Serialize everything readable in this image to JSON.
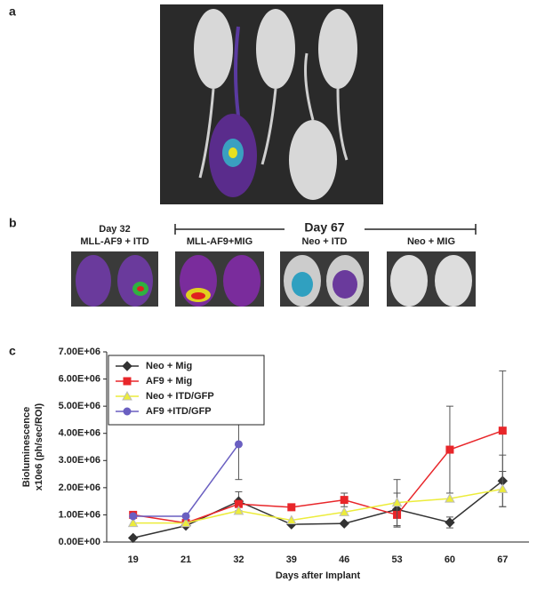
{
  "panels": {
    "a": {
      "label": "a"
    },
    "b": {
      "label": "b",
      "day32": "Day 32",
      "group32": "MLL-AF9 + ITD",
      "day67": "Day 67",
      "groups": [
        "MLL-AF9+MIG",
        "Neo + ITD",
        "Neo + MIG"
      ]
    },
    "c": {
      "label": "c"
    }
  },
  "chart_data": {
    "type": "line",
    "ylabel": [
      "Bioluminescence",
      "x10e6 (ph/sec/ROI)"
    ],
    "xlabel": "Days after Implant",
    "categories": [
      "19",
      "21",
      "32",
      "39",
      "46",
      "53",
      "60",
      "67"
    ],
    "ylim": [
      0,
      7000000
    ],
    "yticks": [
      {
        "value": 0,
        "label": "0.00E+00"
      },
      {
        "value": 1000000,
        "label": "1.00E+06"
      },
      {
        "value": 2000000,
        "label": "2.00E+06"
      },
      {
        "value": 3000000,
        "label": "3.00E+06"
      },
      {
        "value": 4000000,
        "label": "4.00E+06"
      },
      {
        "value": 5000000,
        "label": "5.00E+06"
      },
      {
        "value": 6000000,
        "label": "6.00E+06"
      },
      {
        "value": 7000000,
        "label": "7.00E+06"
      }
    ],
    "legend": "upper left",
    "series": [
      {
        "name": "Neo + Mig",
        "color": "#333333",
        "marker": "diamond",
        "values": [
          150000,
          600000,
          1500000,
          650000,
          680000,
          1200000,
          720000,
          2250000
        ],
        "errors": [
          null,
          null,
          350000,
          null,
          null,
          600000,
          200000,
          950000
        ]
      },
      {
        "name": "AF9 + Mig",
        "color": "#e8262a",
        "marker": "square",
        "values": [
          1000000,
          700000,
          1400000,
          1280000,
          1550000,
          1000000,
          3400000,
          4100000
        ],
        "errors": [
          null,
          null,
          null,
          null,
          250000,
          450000,
          1600000,
          2200000
        ]
      },
      {
        "name": "Neo + ITD/GFP",
        "color": "#ecec3a",
        "marker": "triangle",
        "values": [
          700000,
          700000,
          1150000,
          800000,
          1100000,
          1450000,
          1600000,
          1950000
        ],
        "errors": [
          null,
          null,
          null,
          null,
          null,
          850000,
          null,
          650000
        ]
      },
      {
        "name": "AF9 +ITD/GFP",
        "color": "#6a5fc1",
        "marker": "circle",
        "values": [
          950000,
          950000,
          3600000,
          null,
          null,
          null,
          null,
          null
        ],
        "errors": [
          null,
          null,
          1300000,
          null,
          null,
          null,
          null,
          null
        ]
      }
    ]
  }
}
